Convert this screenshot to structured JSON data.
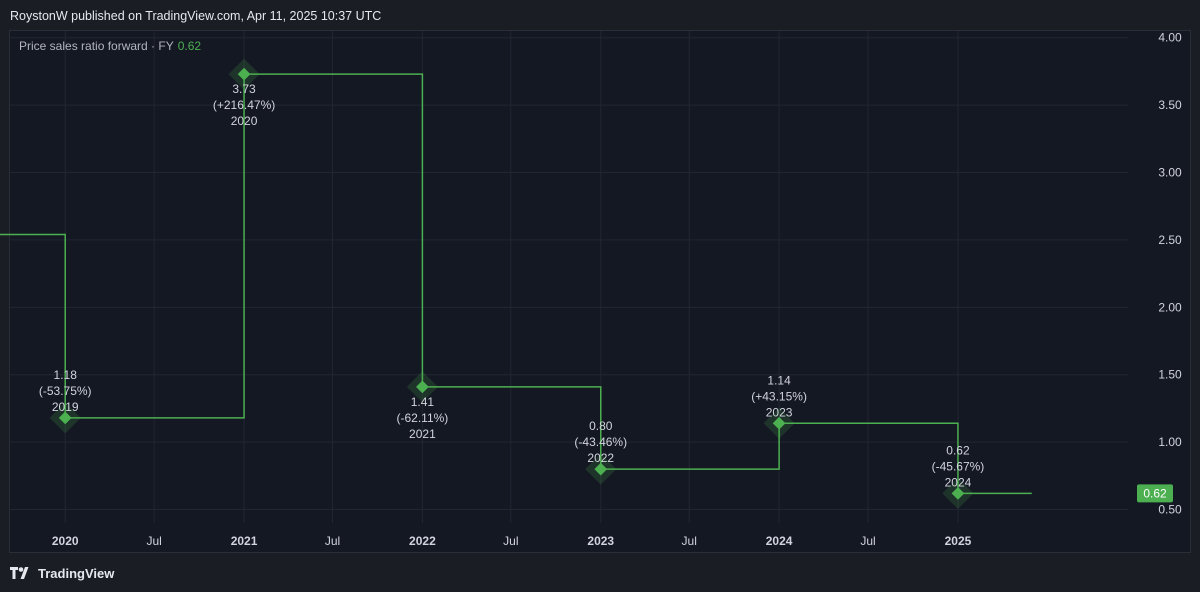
{
  "header": {
    "publish_text": "RoystonW published on TradingView.com, Apr 11, 2025 10:37 UTC"
  },
  "legend": {
    "label": "Price sales ratio forward · FY",
    "value": "0.62"
  },
  "footer": {
    "brand": "TradingView",
    "logo_icon": "tradingview-logo-icon"
  },
  "colors": {
    "line": "#4caf50",
    "marker": "#4caf50",
    "badge_bg": "#4caf50",
    "grid": "#222632",
    "text": "#d1d4dc"
  },
  "chart_data": {
    "type": "line",
    "step": true,
    "series": [
      {
        "name": "Price sales ratio forward · FY",
        "x": [
          "2019-06-01",
          "2020-01-01",
          "2021-01-01",
          "2022-01-01",
          "2023-01-01",
          "2024-01-01",
          "2025-01-01",
          "2025-06-01"
        ],
        "values": [
          2.54,
          1.18,
          3.73,
          1.41,
          0.8,
          1.14,
          0.62,
          0.62
        ]
      }
    ],
    "points": [
      {
        "date": "2020-01-01",
        "value": 1.18,
        "value_label": "1.18",
        "change_label": "(-53.75%)",
        "year_label": "2019",
        "label_side": "above"
      },
      {
        "date": "2021-01-01",
        "value": 3.73,
        "value_label": "3.73",
        "change_label": "(+216.47%)",
        "year_label": "2020",
        "label_side": "below"
      },
      {
        "date": "2022-01-01",
        "value": 1.41,
        "value_label": "1.41",
        "change_label": "(-62.11%)",
        "year_label": "2021",
        "label_side": "below"
      },
      {
        "date": "2023-01-01",
        "value": 0.8,
        "value_label": "0.80",
        "change_label": "(-43.46%)",
        "year_label": "2022",
        "label_side": "above"
      },
      {
        "date": "2024-01-01",
        "value": 1.14,
        "value_label": "1.14",
        "change_label": "(+43.15%)",
        "year_label": "2023",
        "label_side": "above"
      },
      {
        "date": "2025-01-01",
        "value": 0.62,
        "value_label": "0.62",
        "change_label": "(-45.67%)",
        "year_label": "2024",
        "label_side": "above"
      }
    ],
    "x_ticks": [
      {
        "date": "2020-01-01",
        "label": "2020",
        "bold": true
      },
      {
        "date": "2020-07-01",
        "label": "Jul",
        "bold": false
      },
      {
        "date": "2021-01-01",
        "label": "2021",
        "bold": true
      },
      {
        "date": "2021-07-01",
        "label": "Jul",
        "bold": false
      },
      {
        "date": "2022-01-01",
        "label": "2022",
        "bold": true
      },
      {
        "date": "2022-07-01",
        "label": "Jul",
        "bold": false
      },
      {
        "date": "2023-01-01",
        "label": "2023",
        "bold": true
      },
      {
        "date": "2023-07-01",
        "label": "Jul",
        "bold": false
      },
      {
        "date": "2024-01-01",
        "label": "2024",
        "bold": true
      },
      {
        "date": "2024-07-01",
        "label": "Jul",
        "bold": false
      },
      {
        "date": "2025-01-01",
        "label": "2025",
        "bold": true
      }
    ],
    "y_ticks": [
      "0.50",
      "1.00",
      "1.50",
      "2.00",
      "2.50",
      "3.00",
      "3.50",
      "4.00"
    ],
    "ylim": [
      0.4,
      4.05
    ],
    "xlim": [
      "2019-09-10",
      "2025-12-15"
    ],
    "last_value_badge": "0.62",
    "grid": true
  }
}
